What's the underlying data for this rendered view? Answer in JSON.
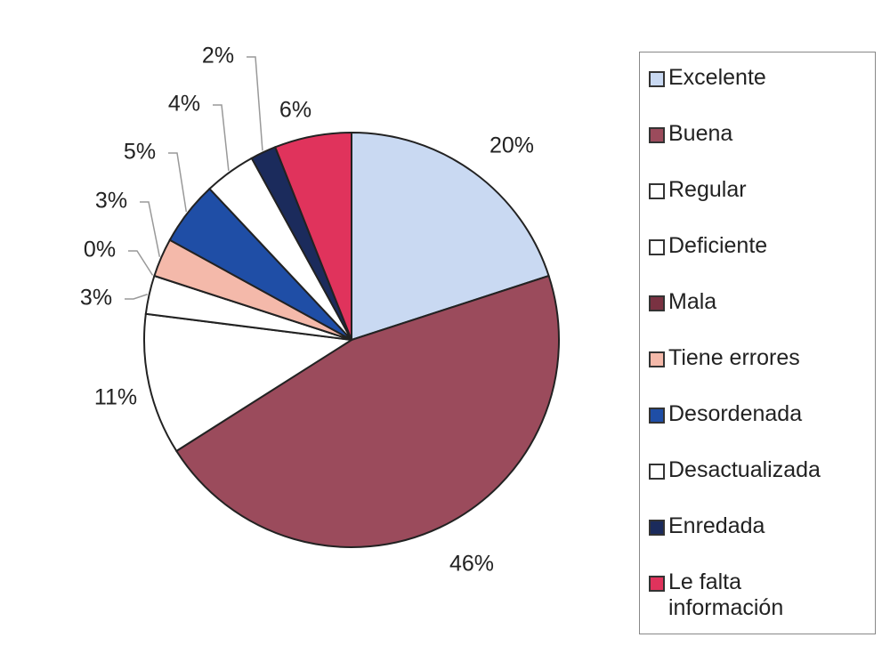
{
  "chart_data": {
    "type": "pie",
    "categories": [
      "Excelente",
      "Buena",
      "Regular",
      "Deficiente",
      "Mala",
      "Tiene errores",
      "Desordenada",
      "Desactualizada",
      "Enredada",
      "Le falta información"
    ],
    "values": [
      20,
      46,
      11,
      3,
      0,
      3,
      5,
      4,
      2,
      6
    ],
    "value_labels": [
      "20%",
      "46%",
      "11%",
      "3%",
      "0%",
      "3%",
      "5%",
      "4%",
      "2%",
      "6%"
    ],
    "colors": [
      "#c9d9f2",
      "#9b4b5c",
      "#ffffff",
      "#ffffff",
      "#7a3242",
      "#f4b9aa",
      "#1f4ea6",
      "#ffffff",
      "#1b2b5c",
      "#e0335c"
    ],
    "legend": "right"
  }
}
